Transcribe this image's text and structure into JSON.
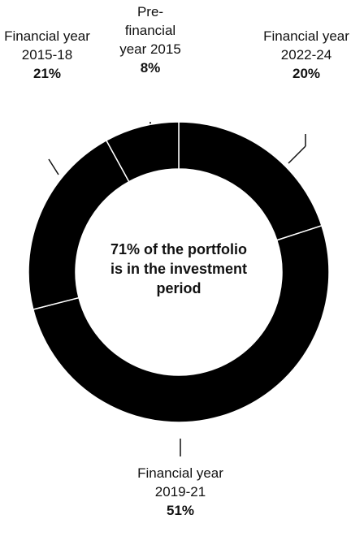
{
  "chart_data": {
    "type": "donut",
    "categories": [
      "Financial year 2022-24",
      "Financial year 2019-21",
      "Financial year 2015-18",
      "Pre-financial year 2015"
    ],
    "values": [
      20,
      51,
      21,
      8
    ],
    "value_labels": [
      "20%",
      "51%",
      "21%",
      "8%"
    ],
    "color": "#000000",
    "center_text": "71% of the portfolio is in the investment period"
  }
}
